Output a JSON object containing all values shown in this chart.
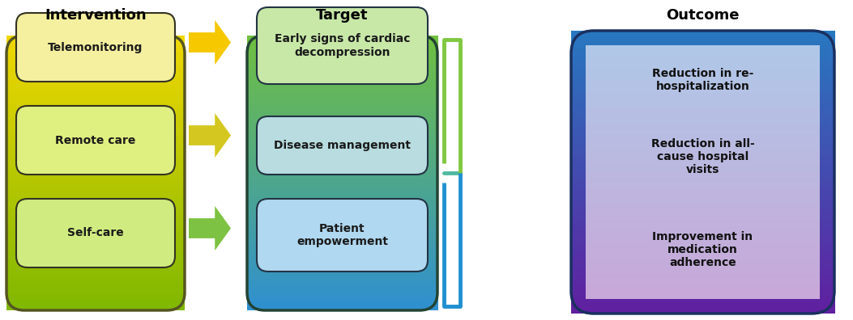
{
  "title_intervention": "Intervention",
  "title_target": "Target",
  "title_outcome": "Outcome",
  "intervention_items": [
    "Telemonitoring",
    "Remote care",
    "Self-care"
  ],
  "target_items": [
    "Early signs of cardiac\ndecompression",
    "Disease management",
    "Patient\nempowerment"
  ],
  "outcome_items": [
    "Reduction in re-\nhospitalization",
    "Reduction in all-\ncause hospital\nvisits",
    "Improvement in\nmedication\nadherence"
  ],
  "intervention_bg_colors": [
    "#f5e642",
    "#c8d930",
    "#8dc63f"
  ],
  "intervention_box_colors": [
    "#f7f0a0",
    "#e8f0a0",
    "#d4e896"
  ],
  "target_bg_colors": [
    "#7dc242",
    "#4ab8c1",
    "#2ba8d4"
  ],
  "target_box_colors": [
    "#c8e8a0",
    "#b0d8d8",
    "#b0d8f0"
  ],
  "outcome_outer_colors": [
    "#2a7fc0",
    "#7030a0"
  ],
  "outcome_inner_color": "#c0d8f0",
  "arrow_colors": [
    "#f5c800",
    "#d4c820",
    "#7dc242"
  ],
  "font_color": "#1a1a1a",
  "bg_color": "#ffffff"
}
